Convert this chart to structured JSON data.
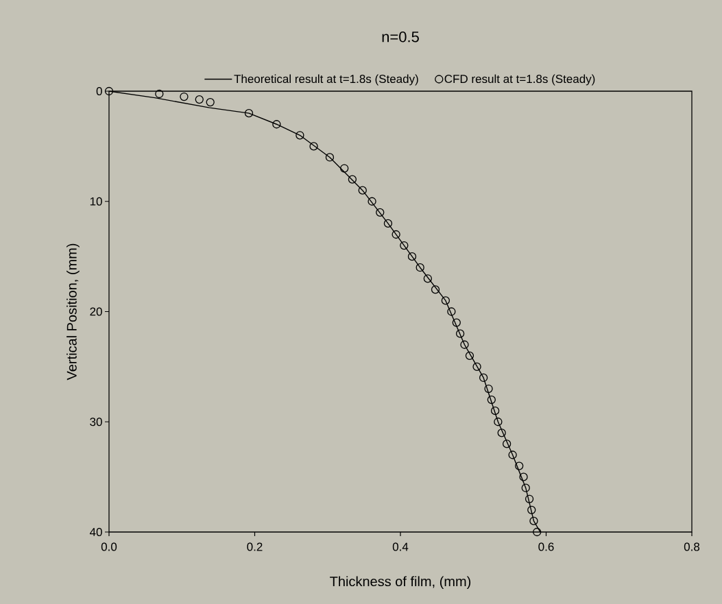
{
  "chart_data": {
    "type": "line",
    "title": "n=0.5",
    "xlabel": "Thickness of film, (mm)",
    "ylabel": "Vertical Position, (mm)",
    "xlim": [
      0,
      0.8
    ],
    "ylim": [
      40,
      0
    ],
    "xticks": [
      {
        "value": 0,
        "label": "0.0"
      },
      {
        "value": 0.2,
        "label": "0.2"
      },
      {
        "value": 0.4,
        "label": "0.4"
      },
      {
        "value": 0.6,
        "label": "0.6"
      },
      {
        "value": 0.8,
        "label": "0.8"
      }
    ],
    "yticks": [
      0,
      10,
      20,
      30,
      40
    ],
    "grid": false,
    "legend": "top",
    "series": [
      {
        "name": "Theoretical result at t=1.8s (Steady)",
        "marker": "none",
        "line_style": "solid",
        "color": "#000000",
        "x": [
          0,
          0.063,
          0.138,
          0.192,
          0.23,
          0.262,
          0.303,
          0.348,
          0.383,
          0.427,
          0.462,
          0.488,
          0.514,
          0.534,
          0.554,
          0.572,
          0.583,
          0.592
        ],
        "values": [
          0,
          0.6,
          1.5,
          2,
          3,
          4,
          6,
          9,
          12,
          16,
          19,
          23,
          26,
          30,
          33,
          36,
          39,
          40
        ]
      },
      {
        "name": "CFD result at t=1.8s (Steady)",
        "type": "scatter",
        "marker": "circle",
        "color": "#000000",
        "x": [
          0,
          0.069,
          0.103,
          0.124,
          0.139,
          0.192,
          0.23,
          0.262,
          0.281,
          0.303,
          0.323,
          0.334,
          0.348,
          0.361,
          0.372,
          0.383,
          0.394,
          0.405,
          0.416,
          0.427,
          0.4375,
          0.448,
          0.462,
          0.47,
          0.477,
          0.482,
          0.488,
          0.495,
          0.505,
          0.514,
          0.521,
          0.525,
          0.53,
          0.534,
          0.539,
          0.546,
          0.554,
          0.563,
          0.569,
          0.572,
          0.577,
          0.58,
          0.583,
          0.5875
        ],
        "values": [
          0,
          0.25,
          0.5,
          0.75,
          1,
          2,
          3,
          4,
          5,
          6,
          7,
          8,
          9,
          10,
          11,
          12,
          13,
          14,
          15,
          16,
          17,
          18,
          19,
          20,
          21,
          22,
          23,
          24,
          25,
          26,
          27,
          28,
          29,
          30,
          31,
          32,
          33,
          34,
          35,
          36,
          37,
          38,
          39,
          40
        ]
      }
    ]
  }
}
